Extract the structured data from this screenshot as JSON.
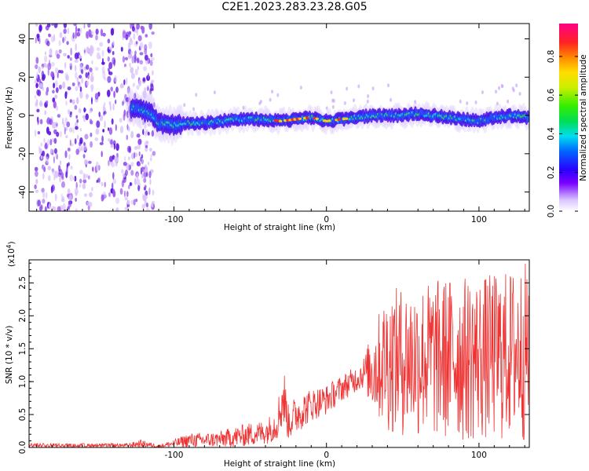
{
  "title": "C2E1.2023.283.23.28.G05",
  "chart_data": [
    {
      "type": "heatmap",
      "xlabel": "Height of straight line (km)",
      "ylabel": "Frequency (Hz)",
      "xlim": [
        -195,
        133
      ],
      "ylim": [
        -50,
        48
      ],
      "x_ticks": [
        -100,
        0,
        100
      ],
      "y_ticks": [
        -40,
        -20,
        0,
        20,
        40
      ],
      "colorbar": {
        "label": "Normalized spectral amplitude",
        "range": [
          0,
          0.97
        ],
        "ticks": [
          0.0,
          0.2,
          0.4,
          0.6,
          0.8
        ]
      },
      "ridge_center_hz": [
        [
          -125,
          4
        ],
        [
          -115,
          1
        ],
        [
          -110,
          -4
        ],
        [
          -100,
          -5
        ],
        [
          -90,
          -4
        ],
        [
          -80,
          -4
        ],
        [
          -70,
          -3
        ],
        [
          -60,
          -2
        ],
        [
          -50,
          -2
        ],
        [
          -40,
          -2
        ],
        [
          -30,
          -3
        ],
        [
          -20,
          -2
        ],
        [
          -10,
          -1
        ],
        [
          0,
          -3
        ],
        [
          10,
          -2
        ],
        [
          20,
          -1
        ],
        [
          30,
          0
        ],
        [
          40,
          0
        ],
        [
          50,
          0
        ],
        [
          60,
          1
        ],
        [
          70,
          0
        ],
        [
          80,
          -1
        ],
        [
          90,
          -2
        ],
        [
          100,
          -3
        ],
        [
          110,
          -1
        ],
        [
          120,
          0
        ],
        [
          133,
          -1
        ]
      ]
    },
    {
      "type": "line",
      "xlabel": "Height of straight line (km)",
      "ylabel": "SNR (10 * v/v)",
      "y_scale_label": "(x10",
      "y_scale_exp": "4",
      "xlim": [
        -195,
        133
      ],
      "ylim": [
        0,
        2.85
      ],
      "x_ticks": [
        -100,
        0,
        100
      ],
      "y_ticks": [
        0.0,
        0.5,
        1.0,
        1.5,
        2.0,
        2.5
      ],
      "series": [
        {
          "color": "#ee3333",
          "envelope": [
            {
              "x": -195,
              "lo": 0.0,
              "hi": 0.05
            },
            {
              "x": -130,
              "lo": 0.0,
              "hi": 0.06
            },
            {
              "x": -122,
              "lo": 0.0,
              "hi": 0.12
            },
            {
              "x": -110,
              "lo": 0.0,
              "hi": 0.04
            },
            {
              "x": -100,
              "lo": 0.0,
              "hi": 0.12
            },
            {
              "x": -90,
              "lo": 0.0,
              "hi": 0.22
            },
            {
              "x": -80,
              "lo": 0.0,
              "hi": 0.22
            },
            {
              "x": -70,
              "lo": 0.0,
              "hi": 0.25
            },
            {
              "x": -60,
              "lo": 0.0,
              "hi": 0.32
            },
            {
              "x": -50,
              "lo": 0.02,
              "hi": 0.38
            },
            {
              "x": -40,
              "lo": 0.05,
              "hi": 0.42
            },
            {
              "x": -33,
              "lo": 0.1,
              "hi": 0.6
            },
            {
              "x": -28,
              "lo": 0.3,
              "hi": 1.25
            },
            {
              "x": -25,
              "lo": 0.1,
              "hi": 0.65
            },
            {
              "x": -20,
              "lo": 0.2,
              "hi": 0.8
            },
            {
              "x": -10,
              "lo": 0.4,
              "hi": 0.9
            },
            {
              "x": 0,
              "lo": 0.5,
              "hi": 0.95
            },
            {
              "x": 10,
              "lo": 0.7,
              "hi": 1.1
            },
            {
              "x": 20,
              "lo": 0.85,
              "hi": 1.25
            },
            {
              "x": 25,
              "lo": 0.9,
              "hi": 1.4
            },
            {
              "x": 30,
              "lo": 0.5,
              "hi": 1.8
            },
            {
              "x": 40,
              "lo": 0.2,
              "hi": 2.4
            },
            {
              "x": 60,
              "lo": 0.1,
              "hi": 2.5
            },
            {
              "x": 80,
              "lo": 0.05,
              "hi": 2.6
            },
            {
              "x": 100,
              "lo": 0.05,
              "hi": 2.6
            },
            {
              "x": 120,
              "lo": 0.05,
              "hi": 2.7
            },
            {
              "x": 133,
              "lo": 0.05,
              "hi": 2.85
            }
          ]
        }
      ]
    }
  ]
}
